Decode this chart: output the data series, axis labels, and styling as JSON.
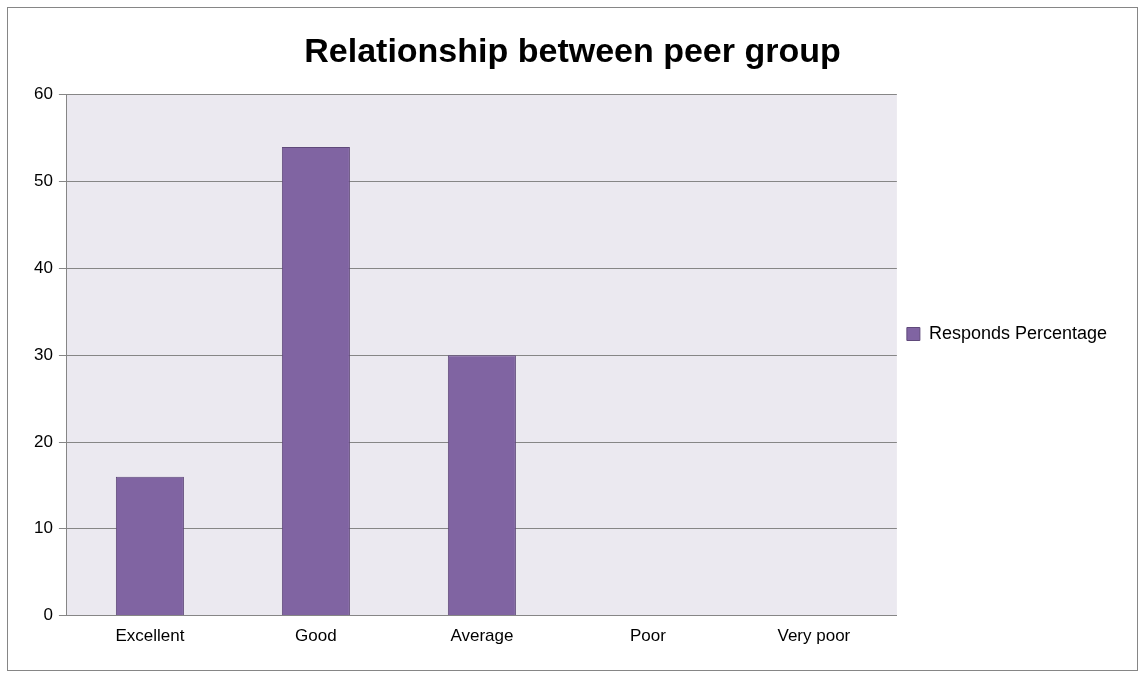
{
  "chart_data": {
    "type": "bar",
    "title": "Relationship between peer group",
    "categories": [
      "Excellent",
      "Good",
      "Average",
      "Poor",
      "Very poor"
    ],
    "series": [
      {
        "name": "Responds Percentage",
        "color": "#8064a2",
        "values": [
          16,
          54,
          30,
          0,
          0
        ]
      }
    ],
    "ylim": [
      0,
      60
    ],
    "yticks": [
      0,
      10,
      20,
      30,
      40,
      50,
      60
    ],
    "grid": "y",
    "legend": "right"
  }
}
